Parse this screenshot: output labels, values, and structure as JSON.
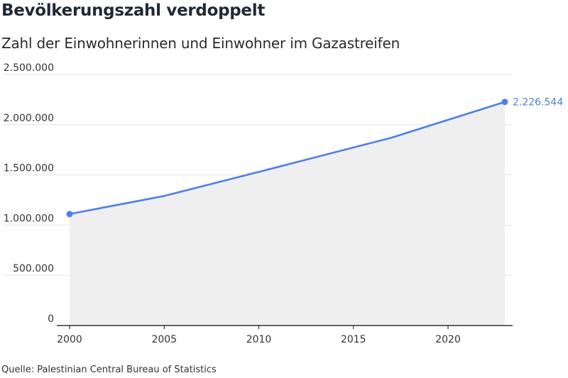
{
  "header": {
    "title": "Bevölkerungszahl verdoppelt",
    "subtitle": "Zahl der Einwohnerinnen und Einwohner im Gazastreifen"
  },
  "footer": {
    "source": "Quelle: Palestinian Central Bureau of Statistics"
  },
  "colors": {
    "line": "#4f7fe8",
    "area": "#efefef",
    "grid": "#e3e3e3",
    "axis": "#333333",
    "end_label": "#4f7fe8"
  },
  "chart_data": {
    "type": "area",
    "title": "Bevölkerungszahl verdoppelt",
    "subtitle": "Zahl der Einwohnerinnen und Einwohner im Gazastreifen",
    "xlabel": "",
    "ylabel": "",
    "x": [
      2000,
      2005,
      2010,
      2017,
      2023
    ],
    "series": [
      {
        "values": [
          1110000,
          1290000,
          1530000,
          1870000,
          2226544
        ]
      }
    ],
    "xlim": [
      2000,
      2023
    ],
    "ylim": [
      0,
      2500000
    ],
    "x_ticks": [
      2000,
      2005,
      2010,
      2015,
      2020
    ],
    "x_tick_labels": [
      "2000",
      "2005",
      "2010",
      "2015",
      "2020"
    ],
    "y_ticks": [
      0,
      500000,
      1000000,
      1500000,
      2000000,
      2500000
    ],
    "y_tick_labels": [
      "0",
      "500.000",
      "1.000.000",
      "1.500.000",
      "2.000.000",
      "2.500.000"
    ],
    "end_label": "2.226.544",
    "grid": true,
    "legend": "none"
  }
}
